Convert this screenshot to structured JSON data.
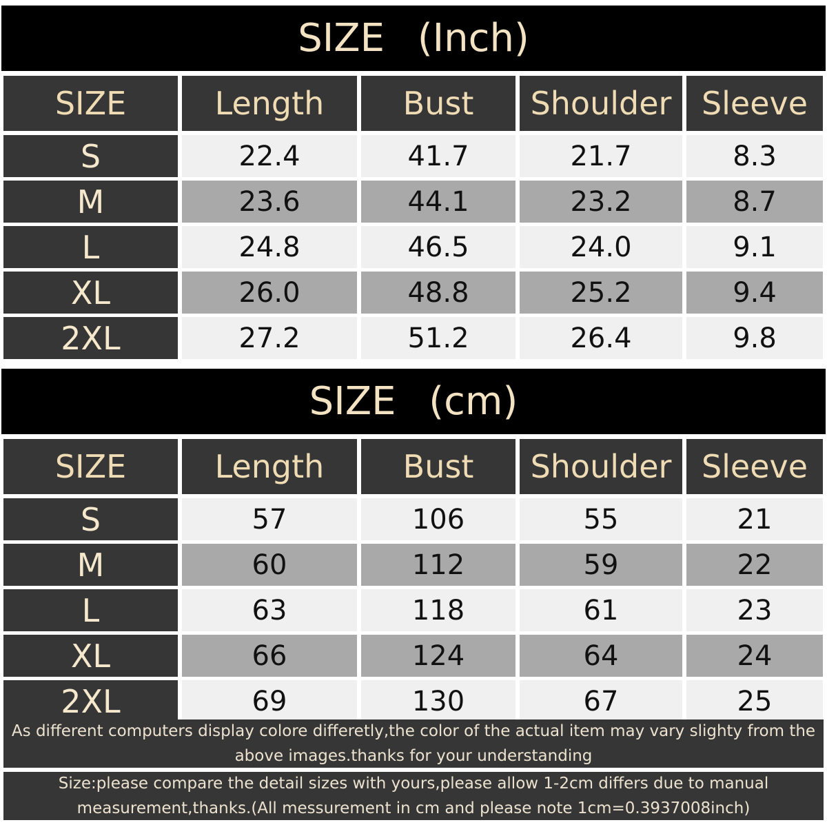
{
  "tables": [
    {
      "title": "SIZE (Inch)",
      "columns": [
        "SIZE",
        "Length",
        "Bust",
        "Shoulder",
        "Sleeve"
      ],
      "rows": [
        [
          "S",
          "22.4",
          "41.7",
          "21.7",
          "8.3"
        ],
        [
          "M",
          "23.6",
          "44.1",
          "23.2",
          "8.7"
        ],
        [
          "L",
          "24.8",
          "46.5",
          "24.0",
          "9.1"
        ],
        [
          "XL",
          "26.0",
          "48.8",
          "25.2",
          "9.4"
        ],
        [
          "2XL",
          "27.2",
          "51.2",
          "26.4",
          "9.8"
        ]
      ]
    },
    {
      "title": "SIZE (cm)",
      "columns": [
        "SIZE",
        "Length",
        "Bust",
        "Shoulder",
        "Sleeve"
      ],
      "rows": [
        [
          "S",
          "57",
          "106",
          "55",
          "21"
        ],
        [
          "M",
          "60",
          "112",
          "59",
          "22"
        ],
        [
          "L",
          "63",
          "118",
          "61",
          "23"
        ],
        [
          "XL",
          "66",
          "124",
          "64",
          "24"
        ],
        [
          "2XL",
          "69",
          "130",
          "67",
          "25"
        ]
      ]
    }
  ],
  "notes": [
    "As different computers display colore differetly,the color of the actual item may vary slighty from the above images.thanks for your understanding",
    "Size:please compare the detail sizes with yours,please allow 1-2cm differs due to manual measurement,thanks.(All messurement in cm and please note 1cm=0.3937008inch)"
  ]
}
